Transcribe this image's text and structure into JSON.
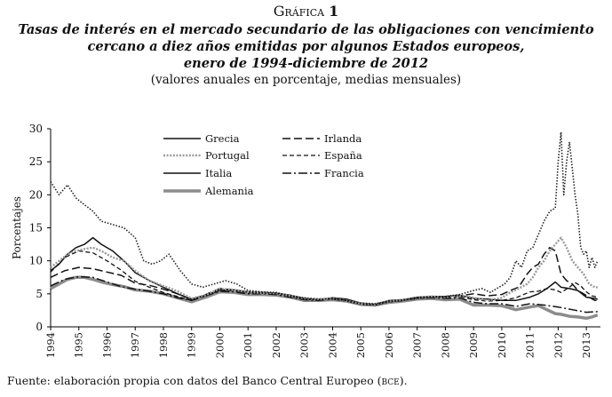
{
  "header": {
    "figure_label_word": "Gráfica",
    "figure_label_num": "1",
    "title_line1": "Tasas de interés en el mercado secundario de las obligaciones con vencimiento",
    "title_line2": "cercano a diez años emitidas por algunos Estados europeos,",
    "title_line3": "enero de 1994-diciembre de 2012",
    "subtitle": "(valores anuales en porcentaje, medias mensuales)"
  },
  "footer": {
    "source_prefix": "Fuente: elaboración propia con datos del Banco Central Europeo (",
    "source_abbr": "bce",
    "source_suffix": ")."
  },
  "colors": {
    "axis": "#000000",
    "dark": "#111111",
    "gray": "#8c8c8c",
    "dotted": "#9a9a9a"
  },
  "chart_data": {
    "type": "line",
    "title": "Tasas de interés en el mercado secundario de las obligaciones con vencimiento cercano a diez años emitidas por algunos Estados europeos, enero de 1994-diciembre de 2012",
    "ylabel": "Porcentajes",
    "xlabel": "",
    "ylim": [
      0,
      30
    ],
    "yticks": [
      0,
      5,
      10,
      15,
      20,
      25,
      30
    ],
    "xlim": [
      1994,
      2013.5
    ],
    "xticks": [
      "1994",
      "1995",
      "1996",
      "1997",
      "1998",
      "1999",
      "2000",
      "2001",
      "2002",
      "2003",
      "2004",
      "2005",
      "2006",
      "2007",
      "2008",
      "2009",
      "2010",
      "2011",
      "2012",
      "2013"
    ],
    "legend_position": "top-left",
    "series": [
      {
        "name": "Grecia",
        "style": "dotted",
        "x": [
          1994,
          1994.3,
          1994.6,
          1994.9,
          1995.2,
          1995.5,
          1995.8,
          1996.2,
          1996.6,
          1997,
          1997.3,
          1997.6,
          1997.9,
          1998.2,
          1998.6,
          1999,
          1999.4,
          1999.8,
          2000.2,
          2000.6,
          2001,
          2001.5,
          2002,
          2002.5,
          2003,
          2003.5,
          2004,
          2004.5,
          2005,
          2005.5,
          2006,
          2006.5,
          2007,
          2007.5,
          2008,
          2008.5,
          2009,
          2009.3,
          2009.6,
          2009.9,
          2010.1,
          2010.3,
          2010.5,
          2010.7,
          2010.9,
          2011.1,
          2011.3,
          2011.5,
          2011.7,
          2011.9,
          2012.0,
          2012.1,
          2012.2,
          2012.3,
          2012.4,
          2012.5,
          2012.6,
          2012.7,
          2012.8,
          2012.9,
          2013.0,
          2013.1,
          2013.2,
          2013.3,
          2013.4
        ],
        "y": [
          22,
          20,
          21.5,
          19.5,
          18.5,
          17.5,
          16,
          15.5,
          15,
          13.5,
          10,
          9.5,
          10,
          11,
          8.5,
          6.5,
          6,
          6.5,
          7,
          6.5,
          5.5,
          5.3,
          5.2,
          4.7,
          4.4,
          4.2,
          4.3,
          4.0,
          3.6,
          3.5,
          3.9,
          4.1,
          4.4,
          4.5,
          4.6,
          4.9,
          5.5,
          5.8,
          5.2,
          6.0,
          6.5,
          7.5,
          10,
          9,
          11.5,
          12,
          14,
          16,
          17.5,
          18,
          25,
          29.5,
          20,
          25,
          28,
          24,
          20,
          17,
          12,
          11,
          11.5,
          9,
          10.5,
          9,
          10
        ]
      },
      {
        "name": "Portugal",
        "style": "dotted-gray",
        "x": [
          1994,
          1994.3,
          1994.6,
          1994.9,
          1995.2,
          1995.5,
          1995.8,
          1996.2,
          1996.6,
          1997,
          1997.5,
          1998,
          1998.5,
          1999,
          1999.5,
          2000,
          2000.5,
          2001,
          2001.5,
          2002,
          2002.5,
          2003,
          2003.5,
          2004,
          2004.5,
          2005,
          2005.5,
          2006,
          2006.5,
          2007,
          2007.5,
          2008,
          2008.5,
          2009,
          2009.5,
          2010,
          2010.3,
          2010.6,
          2010.9,
          2011.1,
          2011.3,
          2011.5,
          2011.7,
          2011.9,
          2012.1,
          2012.3,
          2012.5,
          2012.7,
          2012.9,
          2013.1,
          2013.3,
          2013.4
        ],
        "y": [
          9,
          10,
          11,
          11.5,
          11.8,
          12,
          11.5,
          10.5,
          10,
          8.5,
          7,
          6.2,
          5.4,
          4.3,
          4.8,
          5.8,
          5.6,
          5.3,
          5.1,
          5.1,
          4.7,
          4.3,
          4.2,
          4.3,
          4.0,
          3.5,
          3.4,
          3.9,
          4.1,
          4.4,
          4.6,
          4.5,
          4.8,
          4.4,
          4.0,
          4.4,
          5.2,
          5.8,
          6.5,
          7.5,
          9,
          10,
          11.5,
          12.5,
          13.5,
          12,
          10,
          9,
          8,
          6.5,
          6,
          6
        ]
      },
      {
        "name": "Italia",
        "style": "solid",
        "x": [
          1994,
          1994.3,
          1994.6,
          1994.9,
          1995.2,
          1995.5,
          1995.8,
          1996.2,
          1996.6,
          1997,
          1997.5,
          1998,
          1998.5,
          1999,
          1999.5,
          2000,
          2000.5,
          2001,
          2001.5,
          2002,
          2002.5,
          2003,
          2003.5,
          2004,
          2004.5,
          2005,
          2005.5,
          2006,
          2006.5,
          2007,
          2007.5,
          2008,
          2008.5,
          2009,
          2009.5,
          2010,
          2010.5,
          2011,
          2011.3,
          2011.6,
          2011.9,
          2012.1,
          2012.4,
          2012.7,
          2013.0,
          2013.3,
          2013.4
        ],
        "y": [
          8.5,
          9.5,
          11,
          12,
          12.5,
          13.5,
          12.5,
          11.5,
          10,
          8.2,
          7.0,
          6.0,
          5.0,
          4.2,
          4.8,
          5.6,
          5.6,
          5.3,
          5.2,
          5.1,
          4.8,
          4.3,
          4.1,
          4.4,
          4.2,
          3.6,
          3.4,
          4.0,
          4.1,
          4.5,
          4.6,
          4.6,
          4.8,
          4.3,
          4.2,
          4.0,
          4.0,
          4.5,
          5.0,
          5.8,
          6.8,
          6.0,
          5.8,
          5.5,
          4.5,
          4.3,
          4.2
        ]
      },
      {
        "name": "Irlanda",
        "style": "long-dash",
        "x": [
          1994,
          1994.5,
          1995,
          1995.5,
          1996,
          1996.5,
          1997,
          1997.5,
          1998,
          1998.5,
          1999,
          1999.5,
          2000,
          2000.5,
          2001,
          2001.5,
          2002,
          2002.5,
          2003,
          2003.5,
          2004,
          2004.5,
          2005,
          2005.5,
          2006,
          2006.5,
          2007,
          2007.5,
          2008,
          2008.5,
          2009,
          2009.5,
          2010,
          2010.3,
          2010.6,
          2010.9,
          2011.1,
          2011.3,
          2011.5,
          2011.7,
          2011.9,
          2012.1,
          2012.3,
          2012.5,
          2012.7,
          2012.9,
          2013.1,
          2013.3,
          2013.4
        ],
        "y": [
          7.5,
          8.5,
          9,
          8.8,
          8.3,
          7.8,
          6.6,
          6.3,
          5.7,
          5.0,
          4.1,
          4.9,
          5.8,
          5.6,
          5.2,
          5.1,
          5.1,
          4.7,
          4.2,
          4.1,
          4.3,
          4.0,
          3.4,
          3.3,
          3.8,
          4.0,
          4.3,
          4.5,
          4.5,
          4.7,
          5.0,
          4.7,
          4.9,
          5.5,
          6,
          8,
          9,
          9.5,
          11,
          12,
          11.5,
          8,
          7,
          6.5,
          5.5,
          5,
          4.5,
          4,
          4
        ]
      },
      {
        "name": "España",
        "style": "medium-dash",
        "x": [
          1994,
          1994.5,
          1995,
          1995.5,
          1996,
          1996.5,
          1997,
          1997.5,
          1998,
          1998.5,
          1999,
          1999.5,
          2000,
          2000.5,
          2001,
          2001.5,
          2002,
          2002.5,
          2003,
          2003.5,
          2004,
          2004.5,
          2005,
          2005.5,
          2006,
          2006.5,
          2007,
          2007.5,
          2008,
          2008.5,
          2009,
          2009.5,
          2010,
          2010.5,
          2011,
          2011.3,
          2011.6,
          2011.9,
          2012.1,
          2012.4,
          2012.6,
          2012.8,
          2013.0,
          2013.2,
          2013.4
        ],
        "y": [
          8.3,
          10.5,
          11.5,
          11.2,
          10,
          8.6,
          6.9,
          6.0,
          5.2,
          4.6,
          4.0,
          4.7,
          5.5,
          5.5,
          5.2,
          5.1,
          5.0,
          4.6,
          4.1,
          4.1,
          4.2,
          4.0,
          3.4,
          3.3,
          3.8,
          4.0,
          4.4,
          4.5,
          4.5,
          4.6,
          4.1,
          3.9,
          4.0,
          4.4,
          5.3,
          5.4,
          5.8,
          5.6,
          5.2,
          6.0,
          6.7,
          6.2,
          5.3,
          4.7,
          4.5
        ]
      },
      {
        "name": "Francia",
        "style": "dash-dot",
        "x": [
          1994,
          1994.5,
          1995,
          1995.5,
          1996,
          1996.5,
          1997,
          1997.5,
          1998,
          1998.5,
          1999,
          1999.5,
          2000,
          2000.5,
          2001,
          2001.5,
          2002,
          2002.5,
          2003,
          2003.5,
          2004,
          2004.5,
          2005,
          2005.5,
          2006,
          2006.5,
          2007,
          2007.5,
          2008,
          2008.5,
          2009,
          2009.5,
          2010,
          2010.5,
          2011,
          2011.5,
          2012,
          2012.5,
          2013,
          2013.4
        ],
        "y": [
          6.2,
          7.2,
          7.6,
          7.5,
          6.8,
          6.1,
          5.7,
          5.4,
          5.0,
          4.4,
          4.0,
          4.7,
          5.4,
          5.3,
          5.0,
          5.0,
          4.9,
          4.5,
          4.1,
          4.0,
          4.2,
          3.9,
          3.4,
          3.3,
          3.8,
          4.0,
          4.3,
          4.4,
          4.3,
          4.4,
          3.7,
          3.5,
          3.5,
          3.1,
          3.5,
          3.3,
          3.0,
          2.6,
          2.2,
          2.3
        ]
      },
      {
        "name": "Alemania",
        "style": "thick-gray",
        "x": [
          1994,
          1994.3,
          1994.6,
          1994.9,
          1995.2,
          1995.5,
          1995.8,
          1996.2,
          1996.6,
          1997,
          1997.5,
          1998,
          1998.5,
          1999,
          1999.5,
          2000,
          2000.5,
          2001,
          2001.5,
          2002,
          2002.5,
          2003,
          2003.5,
          2004,
          2004.5,
          2005,
          2005.5,
          2006,
          2006.5,
          2007,
          2007.5,
          2008,
          2008.5,
          2009,
          2009.5,
          2010,
          2010.5,
          2011,
          2011.3,
          2011.6,
          2011.9,
          2012.1,
          2012.4,
          2012.7,
          2013.0,
          2013.2,
          2013.4
        ],
        "y": [
          5.8,
          6.5,
          7.2,
          7.5,
          7.5,
          7.2,
          6.8,
          6.4,
          6.1,
          5.6,
          5.4,
          5.0,
          4.4,
          3.8,
          4.5,
          5.3,
          5.2,
          4.9,
          4.9,
          4.8,
          4.5,
          4.0,
          4.0,
          4.1,
          3.9,
          3.4,
          3.3,
          3.7,
          3.9,
          4.2,
          4.3,
          4.1,
          4.2,
          3.3,
          3.3,
          3.2,
          2.6,
          3.0,
          3.2,
          2.6,
          2.0,
          1.9,
          1.6,
          1.5,
          1.3,
          1.5,
          1.8
        ]
      }
    ]
  }
}
